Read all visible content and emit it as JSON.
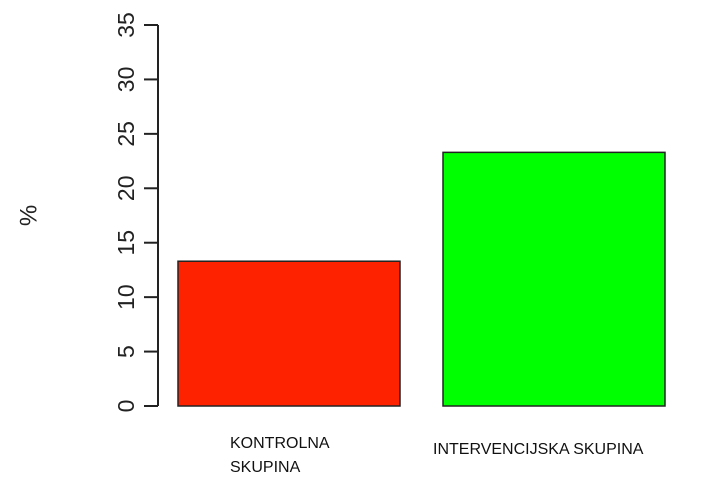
{
  "chart_data": {
    "type": "bar",
    "ylabel": "%",
    "ylim": [
      0,
      35
    ],
    "yticks": [
      0,
      5,
      10,
      15,
      20,
      25,
      30,
      35
    ],
    "categories": [
      "KONTROLNA\nSKUPINA",
      "INTERVENCIJSKA SKUPINA"
    ],
    "values": [
      13.3,
      23.3
    ],
    "colors": [
      "#ff2200",
      "#00ff00"
    ],
    "grid": false
  }
}
